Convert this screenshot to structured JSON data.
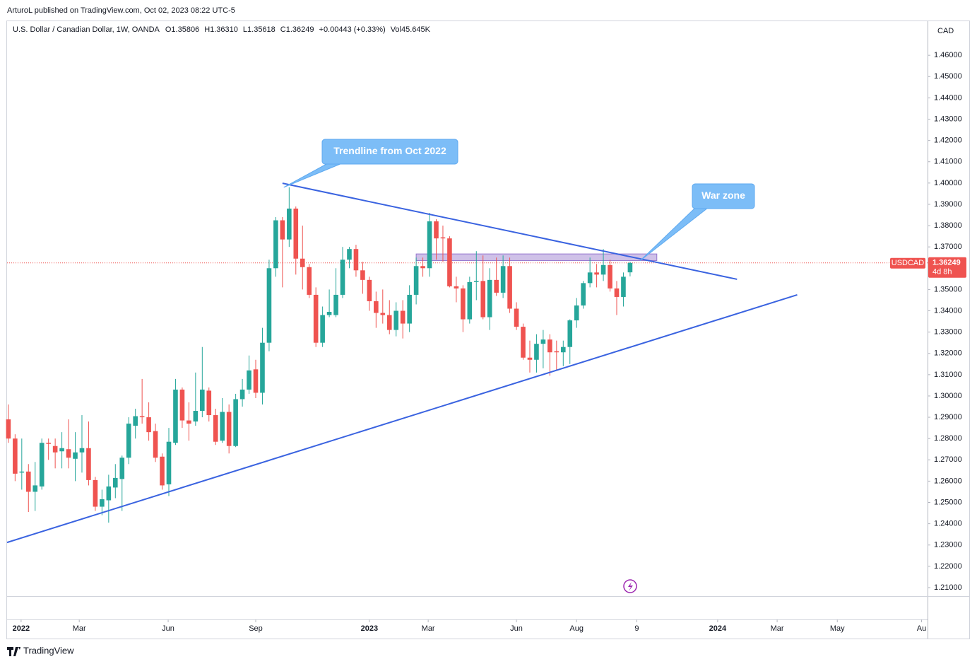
{
  "header": "ArturoL published on TradingView.com, Oct 02, 2023 08:22 UTC-5",
  "footer": "TradingView",
  "chart_data": {
    "type": "candlestick",
    "title": "U.S. Dollar / Canadian Dollar, 1W, OANDA",
    "legend_values": [
      "O1.35806",
      "H1.36310",
      "L1.35618",
      "C1.36249",
      "+0.00443 (+0.33%)",
      "Vol45.645K"
    ],
    "currency": "CAD",
    "symbol_tag": "USDCAD",
    "last_price_label": "1.36249",
    "countdown": "4d 8h",
    "up_color": "#26a69a",
    "down_color": "#ef5350",
    "open": [
      1.289,
      1.28,
      1.264,
      1.2645,
      1.255,
      1.2575,
      1.278,
      1.2765,
      1.274,
      1.275,
      1.2705,
      1.2735,
      1.2755,
      1.2605,
      1.248,
      1.251,
      1.257,
      1.261,
      1.271,
      1.286,
      1.2905,
      1.29,
      1.2835,
      1.2715,
      1.2585,
      1.278,
      1.303,
      1.2885,
      1.288,
      1.293,
      1.3025,
      1.291,
      1.279,
      1.2925,
      1.2765,
      1.2985,
      1.303,
      1.3125,
      1.3015,
      1.325,
      1.36,
      1.3825,
      1.3735,
      1.388,
      1.3645,
      1.3605,
      1.3475,
      1.325,
      1.338,
      1.338,
      1.3475,
      1.364,
      1.369,
      1.359,
      1.3545,
      1.3445,
      1.339,
      1.338,
      1.331,
      1.34,
      1.334,
      1.3475,
      1.361,
      1.36,
      1.382,
      1.3745,
      1.374,
      1.3515,
      1.3505,
      1.336,
      1.3535,
      1.354,
      1.337,
      1.3545,
      1.3485,
      1.361,
      1.341,
      1.3325,
      1.318,
      1.317,
      1.3245,
      1.3265,
      1.321,
      1.3205,
      1.323,
      1.3355,
      1.3425,
      1.353,
      1.358,
      1.357,
      1.3615,
      1.3505,
      1.3465,
      1.35806
    ],
    "high": [
      1.296,
      1.282,
      1.28,
      1.268,
      1.269,
      1.28,
      1.28,
      1.28,
      1.283,
      1.289,
      1.283,
      1.291,
      1.288,
      1.262,
      1.256,
      1.263,
      1.268,
      1.272,
      1.29,
      1.294,
      1.308,
      1.297,
      1.287,
      1.273,
      1.285,
      1.308,
      1.304,
      1.297,
      1.311,
      1.323,
      1.304,
      1.294,
      1.299,
      1.296,
      1.301,
      1.308,
      1.319,
      1.317,
      1.332,
      1.364,
      1.384,
      1.384,
      1.398,
      1.389,
      1.38,
      1.362,
      1.351,
      1.342,
      1.35,
      1.36,
      1.37,
      1.37,
      1.371,
      1.363,
      1.356,
      1.349,
      1.35,
      1.345,
      1.344,
      1.345,
      1.352,
      1.365,
      1.365,
      1.386,
      1.383,
      1.38,
      1.375,
      1.356,
      1.352,
      1.356,
      1.368,
      1.366,
      1.36,
      1.365,
      1.366,
      1.365,
      1.344,
      1.334,
      1.326,
      1.329,
      1.331,
      1.329,
      1.326,
      1.326,
      1.336,
      1.346,
      1.354,
      1.365,
      1.362,
      1.369,
      1.364,
      1.354,
      1.358,
      1.3631
    ],
    "low": [
      1.278,
      1.26,
      1.256,
      1.2455,
      1.246,
      1.256,
      1.27,
      1.266,
      1.266,
      1.266,
      1.26,
      1.264,
      1.258,
      1.246,
      1.244,
      1.2405,
      1.252,
      1.246,
      1.268,
      1.28,
      1.287,
      1.279,
      1.269,
      1.256,
      1.253,
      1.277,
      1.285,
      1.279,
      1.286,
      1.29,
      1.288,
      1.277,
      1.278,
      1.273,
      1.276,
      1.295,
      1.301,
      1.299,
      1.296,
      1.321,
      1.356,
      1.351,
      1.37,
      1.357,
      1.35,
      1.346,
      1.323,
      1.323,
      1.337,
      1.337,
      1.346,
      1.36,
      1.356,
      1.348,
      1.34,
      1.332,
      1.334,
      1.329,
      1.328,
      1.327,
      1.33,
      1.343,
      1.356,
      1.356,
      1.364,
      1.363,
      1.351,
      1.344,
      1.33,
      1.334,
      1.345,
      1.336,
      1.331,
      1.347,
      1.346,
      1.339,
      1.331,
      1.317,
      1.311,
      1.311,
      1.313,
      1.3095,
      1.312,
      1.314,
      1.315,
      1.332,
      1.341,
      1.351,
      1.351,
      1.354,
      1.349,
      1.338,
      1.342,
      1.35618
    ],
    "close": [
      1.28,
      1.2635,
      1.2645,
      1.255,
      1.258,
      1.278,
      1.2775,
      1.2735,
      1.2755,
      1.271,
      1.2735,
      1.2755,
      1.2605,
      1.248,
      1.2515,
      1.2575,
      1.2615,
      1.271,
      1.287,
      1.2905,
      1.29,
      1.283,
      1.271,
      1.258,
      1.2785,
      1.303,
      1.2885,
      1.287,
      1.293,
      1.303,
      1.291,
      1.2785,
      1.2925,
      1.2765,
      1.2985,
      1.303,
      1.312,
      1.3015,
      1.325,
      1.36,
      1.3825,
      1.3735,
      1.388,
      1.3645,
      1.3605,
      1.3475,
      1.325,
      1.338,
      1.3395,
      1.3475,
      1.364,
      1.369,
      1.359,
      1.3545,
      1.3445,
      1.339,
      1.338,
      1.331,
      1.34,
      1.334,
      1.3475,
      1.361,
      1.36,
      1.382,
      1.374,
      1.374,
      1.3515,
      1.3505,
      1.336,
      1.3535,
      1.354,
      1.337,
      1.3545,
      1.3485,
      1.361,
      1.341,
      1.3325,
      1.318,
      1.317,
      1.3245,
      1.3265,
      1.3205,
      1.3205,
      1.323,
      1.3355,
      1.3425,
      1.353,
      1.358,
      1.357,
      1.3615,
      1.3505,
      1.3465,
      1.356,
      1.36249
    ],
    "last_price": 1.36249,
    "xlim": [
      -0.2,
      137.5
    ],
    "xticks": [
      {
        "value": 1.9,
        "label": "2022"
      },
      {
        "value": 10.6,
        "label": "Mar"
      },
      {
        "value": 23.9,
        "label": "Jun"
      },
      {
        "value": 37,
        "label": "Sep"
      },
      {
        "value": 54,
        "label": "2023"
      },
      {
        "value": 62.8,
        "label": "Mar"
      },
      {
        "value": 76,
        "label": "Jun"
      },
      {
        "value": 85,
        "label": "Aug"
      },
      {
        "value": 94,
        "label": "9"
      },
      {
        "value": 106.1,
        "label": "2024"
      },
      {
        "value": 115,
        "label": "Mar"
      },
      {
        "value": 124,
        "label": "May"
      },
      {
        "value": 136.6,
        "label": "Au"
      }
    ],
    "ylim": [
      1.206,
      1.476
    ],
    "yticks": [
      {
        "value": 1.21,
        "label": "1.21000"
      },
      {
        "value": 1.22,
        "label": "1.22000"
      },
      {
        "value": 1.23,
        "label": "1.23000"
      },
      {
        "value": 1.24,
        "label": "1.24000"
      },
      {
        "value": 1.25,
        "label": "1.25000"
      },
      {
        "value": 1.26,
        "label": "1.26000"
      },
      {
        "value": 1.27,
        "label": "1.27000"
      },
      {
        "value": 1.28,
        "label": "1.28000"
      },
      {
        "value": 1.29,
        "label": "1.29000"
      },
      {
        "value": 1.3,
        "label": "1.30000"
      },
      {
        "value": 1.31,
        "label": "1.31000"
      },
      {
        "value": 1.32,
        "label": "1.32000"
      },
      {
        "value": 1.33,
        "label": "1.33000"
      },
      {
        "value": 1.34,
        "label": "1.34000"
      },
      {
        "value": 1.35,
        "label": "1.35000"
      },
      {
        "value": 1.36,
        "label": "1.36000"
      },
      {
        "value": 1.37,
        "label": "1.37000"
      },
      {
        "value": 1.38,
        "label": "1.38000"
      },
      {
        "value": 1.39,
        "label": "1.39000"
      },
      {
        "value": 1.4,
        "label": "1.40000"
      },
      {
        "value": 1.41,
        "label": "1.41000"
      },
      {
        "value": 1.42,
        "label": "1.42000"
      },
      {
        "value": 1.43,
        "label": "1.43000"
      },
      {
        "value": 1.44,
        "label": "1.44000"
      },
      {
        "value": 1.45,
        "label": "1.45000"
      },
      {
        "value": 1.46,
        "label": "1.46000"
      }
    ],
    "trendlines": [
      {
        "x": [
          41,
          109
        ],
        "y": [
          1.3999,
          1.3548
        ],
        "color": "#3a63e0"
      },
      {
        "x": [
          -0.2,
          118
        ],
        "y": [
          1.2312,
          1.3475
        ],
        "color": "#3a63e0"
      }
    ],
    "zone": {
      "x": [
        61,
        97
      ],
      "y": [
        1.3636,
        1.3667
      ],
      "color": "#9575cd"
    },
    "annotations": [
      {
        "text": "Trendline from Oct 2022",
        "x": 41.2,
        "y": 1.398
      },
      {
        "text": "War zone",
        "x": 94.5,
        "y": 1.3635
      }
    ]
  }
}
